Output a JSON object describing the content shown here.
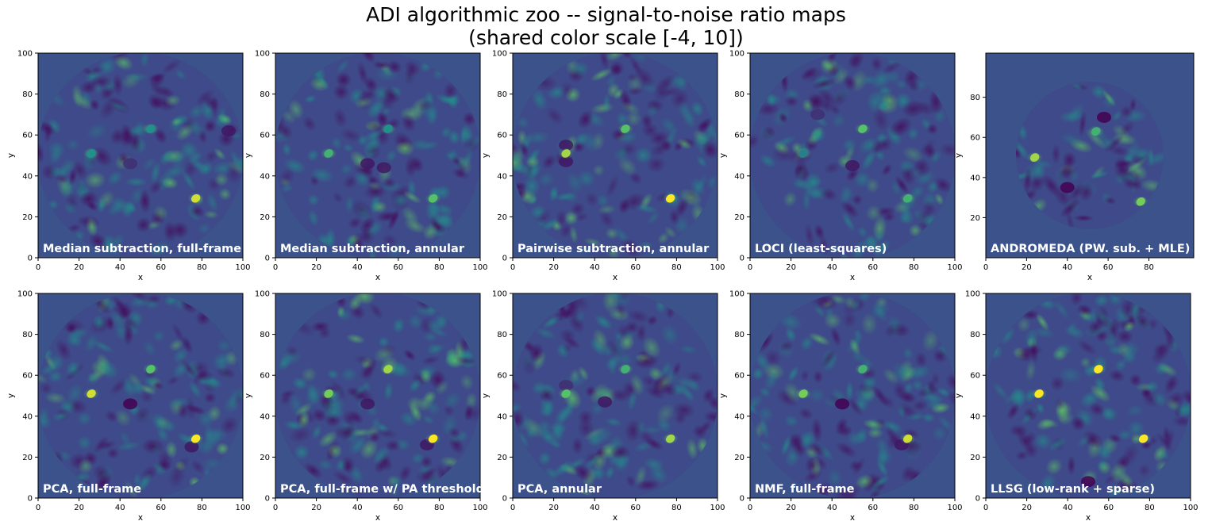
{
  "title_line1": "ADI algorithmic zoo -- signal-to-noise ratio maps",
  "title_line2": "(shared color scale [-4, 10])",
  "colors": {
    "background": "#3b528b",
    "colormap": "viridis",
    "label_text": "#ffffff"
  },
  "chart_data": [
    {
      "type": "heatmap",
      "label": "Median subtraction, full-frame",
      "xlabel": "x",
      "ylabel": "y",
      "xlim": [
        0,
        100
      ],
      "ylim": [
        0,
        100
      ],
      "xticks": [
        0,
        20,
        40,
        60,
        80,
        100
      ],
      "yticks": [
        0,
        20,
        40,
        60,
        80,
        100
      ],
      "color_scale": [
        -4,
        10
      ],
      "peaks": [
        {
          "x": 77,
          "y": 29,
          "snr": 9
        },
        {
          "x": 26,
          "y": 51,
          "snr": 3
        },
        {
          "x": 55,
          "y": 63,
          "snr": 3
        }
      ],
      "holes": [
        {
          "x": 93,
          "y": 62,
          "snr": -3
        },
        {
          "x": 45,
          "y": 46,
          "snr": -2
        }
      ]
    },
    {
      "type": "heatmap",
      "label": "Median subtraction, annular",
      "xlabel": "x",
      "ylabel": "y",
      "xlim": [
        0,
        100
      ],
      "ylim": [
        0,
        100
      ],
      "xticks": [
        0,
        20,
        40,
        60,
        80,
        100
      ],
      "yticks": [
        0,
        20,
        40,
        60,
        80,
        100
      ],
      "color_scale": [
        -4,
        10
      ],
      "peaks": [
        {
          "x": 77,
          "y": 29,
          "snr": 6
        },
        {
          "x": 26,
          "y": 51,
          "snr": 5
        },
        {
          "x": 55,
          "y": 63,
          "snr": 3
        }
      ],
      "holes": [
        {
          "x": 53,
          "y": 44,
          "snr": -3
        },
        {
          "x": 45,
          "y": 46,
          "snr": -3
        }
      ]
    },
    {
      "type": "heatmap",
      "label": "Pairwise subtraction, annular",
      "xlabel": "x",
      "ylabel": "y",
      "xlim": [
        0,
        100
      ],
      "ylim": [
        0,
        100
      ],
      "xticks": [
        0,
        20,
        40,
        60,
        80,
        100
      ],
      "yticks": [
        0,
        20,
        40,
        60,
        80,
        100
      ],
      "color_scale": [
        -4,
        10
      ],
      "peaks": [
        {
          "x": 77,
          "y": 29,
          "snr": 10
        },
        {
          "x": 26,
          "y": 51,
          "snr": 8
        },
        {
          "x": 55,
          "y": 63,
          "snr": 6
        }
      ],
      "holes": [
        {
          "x": 26,
          "y": 55,
          "snr": -3
        },
        {
          "x": 26,
          "y": 47,
          "snr": -3
        }
      ]
    },
    {
      "type": "heatmap",
      "label": "LOCI (least-squares)",
      "xlabel": "x",
      "ylabel": "y",
      "xlim": [
        0,
        100
      ],
      "ylim": [
        0,
        100
      ],
      "xticks": [
        0,
        20,
        40,
        60,
        80,
        100
      ],
      "yticks": [
        0,
        20,
        40,
        60,
        80,
        100
      ],
      "color_scale": [
        -4,
        10
      ],
      "peaks": [
        {
          "x": 77,
          "y": 29,
          "snr": 5
        },
        {
          "x": 55,
          "y": 63,
          "snr": 6
        },
        {
          "x": 26,
          "y": 51,
          "snr": 2
        }
      ],
      "holes": [
        {
          "x": 50,
          "y": 45,
          "snr": -3
        },
        {
          "x": 33,
          "y": 70,
          "snr": -2
        }
      ]
    },
    {
      "type": "heatmap",
      "label": "ANDROMEDA (PW. sub. + MLE)",
      "xlabel": "x",
      "ylabel": "y",
      "xlim": [
        0,
        100
      ],
      "ylim": [
        0,
        100
      ],
      "xticks": [
        0,
        20,
        40,
        60,
        80
      ],
      "yticks": [
        20,
        40,
        60,
        80
      ],
      "color_scale": [
        -4,
        10
      ],
      "peaks": [
        {
          "x": 76,
          "y": 28,
          "snr": 7
        },
        {
          "x": 24,
          "y": 50,
          "snr": 8
        },
        {
          "x": 54,
          "y": 63,
          "snr": 5
        }
      ],
      "holes": [
        {
          "x": 58,
          "y": 70,
          "snr": -4
        },
        {
          "x": 40,
          "y": 35,
          "snr": -4
        }
      ]
    },
    {
      "type": "heatmap",
      "label": "PCA, full-frame",
      "xlabel": "x",
      "ylabel": "y",
      "xlim": [
        0,
        100
      ],
      "ylim": [
        0,
        100
      ],
      "xticks": [
        0,
        20,
        40,
        60,
        80,
        100
      ],
      "yticks": [
        0,
        20,
        40,
        60,
        80,
        100
      ],
      "color_scale": [
        -4,
        10
      ],
      "peaks": [
        {
          "x": 77,
          "y": 29,
          "snr": 10
        },
        {
          "x": 26,
          "y": 51,
          "snr": 9
        },
        {
          "x": 55,
          "y": 63,
          "snr": 6
        }
      ],
      "holes": [
        {
          "x": 45,
          "y": 46,
          "snr": -4
        },
        {
          "x": 75,
          "y": 25,
          "snr": -3
        }
      ]
    },
    {
      "type": "heatmap",
      "label": "PCA, full-frame w/ PA threshold",
      "xlabel": "x",
      "ylabel": "y",
      "xlim": [
        0,
        100
      ],
      "ylim": [
        0,
        100
      ],
      "xticks": [
        0,
        20,
        40,
        60,
        80,
        100
      ],
      "yticks": [
        0,
        20,
        40,
        60,
        80,
        100
      ],
      "color_scale": [
        -4,
        10
      ],
      "peaks": [
        {
          "x": 77,
          "y": 29,
          "snr": 10
        },
        {
          "x": 26,
          "y": 51,
          "snr": 7
        },
        {
          "x": 55,
          "y": 63,
          "snr": 8
        }
      ],
      "holes": [
        {
          "x": 74,
          "y": 26,
          "snr": -3
        },
        {
          "x": 45,
          "y": 46,
          "snr": -3
        }
      ]
    },
    {
      "type": "heatmap",
      "label": "PCA, annular",
      "xlabel": "x",
      "ylabel": "y",
      "xlim": [
        0,
        100
      ],
      "ylim": [
        0,
        100
      ],
      "xticks": [
        0,
        20,
        40,
        60,
        80,
        100
      ],
      "yticks": [
        0,
        20,
        40,
        60,
        80,
        100
      ],
      "color_scale": [
        -4,
        10
      ],
      "peaks": [
        {
          "x": 77,
          "y": 29,
          "snr": 8
        },
        {
          "x": 26,
          "y": 51,
          "snr": 6
        },
        {
          "x": 55,
          "y": 63,
          "snr": 5
        }
      ],
      "holes": [
        {
          "x": 45,
          "y": 47,
          "snr": -3
        },
        {
          "x": 26,
          "y": 55,
          "snr": -2
        }
      ]
    },
    {
      "type": "heatmap",
      "label": "NMF, full-frame",
      "xlabel": "x",
      "ylabel": "y",
      "xlim": [
        0,
        100
      ],
      "ylim": [
        0,
        100
      ],
      "xticks": [
        0,
        20,
        40,
        60,
        80,
        100
      ],
      "yticks": [
        0,
        20,
        40,
        60,
        80,
        100
      ],
      "color_scale": [
        -4,
        10
      ],
      "peaks": [
        {
          "x": 77,
          "y": 29,
          "snr": 9
        },
        {
          "x": 26,
          "y": 51,
          "snr": 7
        },
        {
          "x": 55,
          "y": 63,
          "snr": 5
        }
      ],
      "holes": [
        {
          "x": 45,
          "y": 46,
          "snr": -4
        },
        {
          "x": 74,
          "y": 26,
          "snr": -3
        }
      ]
    },
    {
      "type": "heatmap",
      "label": "LLSG (low-rank + sparse)",
      "xlabel": "x",
      "ylabel": "y",
      "xlim": [
        0,
        100
      ],
      "ylim": [
        0,
        100
      ],
      "xticks": [
        0,
        20,
        40,
        60,
        80,
        100
      ],
      "yticks": [
        0,
        20,
        40,
        60,
        80,
        100
      ],
      "color_scale": [
        -4,
        10
      ],
      "peaks": [
        {
          "x": 26,
          "y": 51,
          "snr": 10
        },
        {
          "x": 55,
          "y": 63,
          "snr": 10
        },
        {
          "x": 77,
          "y": 29,
          "snr": 10
        }
      ],
      "holes": [
        {
          "x": 50,
          "y": 8,
          "snr": -4
        }
      ]
    }
  ]
}
